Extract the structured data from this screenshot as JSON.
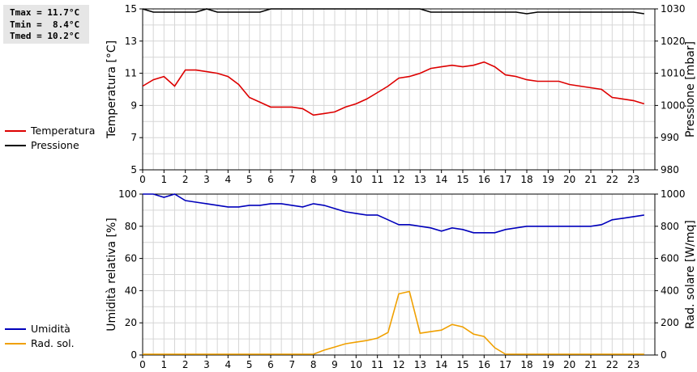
{
  "stats": {
    "tmax": "Tmax = 11.7°C",
    "tmin": "Tmin =  8.4°C",
    "tmed": "Tmed = 10.2°C"
  },
  "chart_data": [
    {
      "type": "line",
      "ylabel": "Temperatura [°C]",
      "y2label": "Pressione [mbar]",
      "xlim": [
        0,
        24
      ],
      "ylim": [
        5,
        15
      ],
      "y2lim": [
        980,
        1030
      ],
      "xticks": [
        "0",
        "1",
        "2",
        "3",
        "4",
        "5",
        "6",
        "7",
        "8",
        "9",
        "10",
        "11",
        "12",
        "13",
        "14",
        "15",
        "16",
        "17",
        "18",
        "19",
        "20",
        "21",
        "22",
        "23"
      ],
      "yticks": [
        "5",
        "7",
        "9",
        "11",
        "13",
        "15"
      ],
      "y2ticks": [
        "980",
        "990",
        "1000",
        "1010",
        "1020",
        "1030"
      ],
      "grid": true,
      "legend_position": "left",
      "series": [
        {
          "name": "Temperatura",
          "color": "#dd0000",
          "axis": "left",
          "x": [
            0,
            0.5,
            1,
            1.5,
            2,
            2.5,
            3,
            3.5,
            4,
            4.5,
            5,
            5.5,
            6,
            6.5,
            7,
            7.5,
            8,
            8.5,
            9,
            9.5,
            10,
            10.5,
            11,
            11.5,
            12,
            12.5,
            13,
            13.5,
            14,
            14.5,
            15,
            15.5,
            16,
            16.5,
            17,
            17.5,
            18,
            18.5,
            19,
            19.5,
            20,
            20.5,
            21,
            21.5,
            22,
            22.5,
            23,
            23.5
          ],
          "values": [
            10.2,
            10.6,
            10.8,
            10.2,
            11.2,
            11.2,
            11.1,
            11.0,
            10.8,
            10.3,
            9.5,
            9.2,
            8.9,
            8.9,
            8.9,
            8.8,
            8.4,
            8.5,
            8.6,
            8.9,
            9.1,
            9.4,
            9.8,
            10.2,
            10.7,
            10.8,
            11.0,
            11.3,
            11.4,
            11.5,
            11.4,
            11.5,
            11.7,
            11.4,
            10.9,
            10.8,
            10.6,
            10.5,
            10.5,
            10.5,
            10.3,
            10.2,
            10.1,
            10.0,
            9.5,
            9.4,
            9.3,
            9.1
          ]
        },
        {
          "name": "Pressione",
          "color": "#000000",
          "axis": "right",
          "x": [
            0,
            0.5,
            1,
            1.5,
            2,
            2.5,
            3,
            3.5,
            4,
            4.5,
            5,
            5.5,
            6,
            6.5,
            7,
            7.5,
            8,
            8.5,
            9,
            9.5,
            10,
            10.5,
            11,
            11.5,
            12,
            12.5,
            13,
            13.5,
            14,
            14.5,
            15,
            15.5,
            16,
            16.5,
            17,
            17.5,
            18,
            18.5,
            19,
            19.5,
            20,
            20.5,
            21,
            21.5,
            22,
            22.5,
            23,
            23.5
          ],
          "values": [
            1030,
            1029,
            1029,
            1029,
            1029,
            1029,
            1030,
            1029,
            1029,
            1029,
            1029,
            1029,
            1030,
            1030,
            1030,
            1030,
            1030,
            1030,
            1030,
            1030,
            1030,
            1030,
            1030,
            1030,
            1030,
            1030,
            1030,
            1029,
            1029,
            1029,
            1029,
            1029,
            1029,
            1029,
            1029,
            1029,
            1028.5,
            1029,
            1029,
            1029,
            1029,
            1029,
            1029,
            1029,
            1029,
            1029,
            1029,
            1028.5
          ]
        }
      ]
    },
    {
      "type": "line",
      "ylabel": "Umidità relativa [%]",
      "y2label": "Rad. solare [W/mq]",
      "xlim": [
        0,
        24
      ],
      "ylim": [
        0,
        100
      ],
      "y2lim": [
        0,
        1000
      ],
      "xticks": [
        "0",
        "1",
        "2",
        "3",
        "4",
        "5",
        "6",
        "7",
        "8",
        "9",
        "10",
        "11",
        "12",
        "13",
        "14",
        "15",
        "16",
        "17",
        "18",
        "19",
        "20",
        "21",
        "22",
        "23"
      ],
      "yticks": [
        "0",
        "20",
        "40",
        "60",
        "80",
        "100"
      ],
      "y2ticks": [
        "0",
        "200",
        "400",
        "600",
        "800",
        "1000"
      ],
      "grid": true,
      "legend_position": "left",
      "series": [
        {
          "name": "Umidità",
          "color": "#0000bb",
          "axis": "left",
          "x": [
            0,
            0.5,
            1,
            1.5,
            2,
            2.5,
            3,
            3.5,
            4,
            4.5,
            5,
            5.5,
            6,
            6.5,
            7,
            7.5,
            8,
            8.5,
            9,
            9.5,
            10,
            10.5,
            11,
            11.5,
            12,
            12.5,
            13,
            13.5,
            14,
            14.5,
            15,
            15.5,
            16,
            16.5,
            17,
            17.5,
            18,
            18.5,
            19,
            19.5,
            20,
            20.5,
            21,
            21.5,
            22,
            22.5,
            23,
            23.5
          ],
          "values": [
            100,
            100,
            98,
            100,
            96,
            95,
            94,
            93,
            92,
            92,
            93,
            93,
            94,
            94,
            93,
            92,
            94,
            93,
            91,
            89,
            88,
            87,
            87,
            84,
            81,
            81,
            80,
            79,
            77,
            79,
            78,
            76,
            76,
            76,
            78,
            79,
            80,
            80,
            80,
            80,
            80,
            80,
            80,
            81,
            84,
            85,
            86,
            87
          ]
        },
        {
          "name": "Rad. sol.",
          "color": "#f0a000",
          "axis": "right",
          "x": [
            0,
            0.5,
            1,
            1.5,
            2,
            2.5,
            3,
            3.5,
            4,
            4.5,
            5,
            5.5,
            6,
            6.5,
            7,
            7.5,
            8,
            8.5,
            9,
            9.5,
            10,
            10.5,
            11,
            11.5,
            12,
            12.5,
            13,
            13.5,
            14,
            14.5,
            15,
            15.5,
            16,
            16.5,
            17,
            17.5,
            18,
            18.5,
            19,
            19.5,
            20,
            20.5,
            21,
            21.5,
            22,
            22.5,
            23,
            23.5
          ],
          "values": [
            5,
            5,
            5,
            5,
            5,
            5,
            5,
            5,
            5,
            5,
            5,
            5,
            5,
            5,
            5,
            5,
            5,
            30,
            50,
            70,
            80,
            90,
            105,
            140,
            380,
            395,
            135,
            145,
            155,
            190,
            175,
            130,
            115,
            45,
            5,
            5,
            5,
            5,
            5,
            5,
            5,
            5,
            5,
            5,
            5,
            5,
            5,
            5
          ]
        }
      ]
    }
  ]
}
